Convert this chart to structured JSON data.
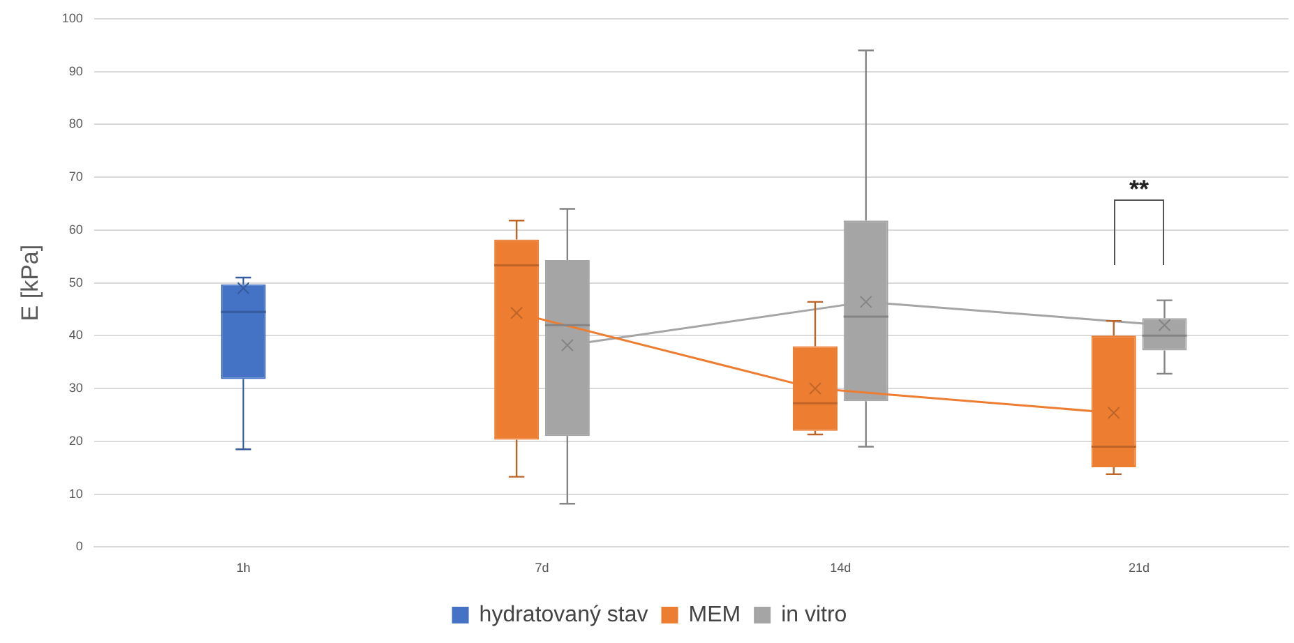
{
  "chart_data": {
    "type": "box",
    "categories": [
      "1h",
      "7d",
      "14d",
      "21d"
    ],
    "ylabel": "E [kPa]",
    "ylim": [
      0,
      100
    ],
    "yticks": [
      0,
      10,
      20,
      30,
      40,
      50,
      60,
      70,
      80,
      90,
      100
    ],
    "grid": "y",
    "legend": "bottom",
    "annotations": [
      "**"
    ],
    "series": [
      {
        "name": "hydratovaný stav",
        "color": "#4472c4",
        "boxes": [
          {
            "low": 18.5,
            "q1": 31.8,
            "median": 44.5,
            "q3": 49.7,
            "high": 51,
            "mean": 49
          },
          null,
          null,
          null
        ]
      },
      {
        "name": "MEM",
        "color": "#ed7d31",
        "boxes": [
          null,
          {
            "low": 13.3,
            "q1": 20.3,
            "median": 53.3,
            "q3": 58.2,
            "high": 61.8,
            "mean": 44.3
          },
          {
            "low": 21.3,
            "q1": 22,
            "median": 27.2,
            "q3": 38,
            "high": 46.4,
            "mean": 30
          },
          {
            "low": 13.8,
            "q1": 15.1,
            "median": 19,
            "q3": 40,
            "high": 42.8,
            "mean": 25.4
          }
        ]
      },
      {
        "name": "in vitro",
        "color": "#a5a5a5",
        "boxes": [
          null,
          {
            "low": 8.2,
            "q1": 21,
            "median": 42,
            "q3": 54.3,
            "high": 64,
            "mean": 38.2
          },
          {
            "low": 19,
            "q1": 27.6,
            "median": 43.6,
            "q3": 61.8,
            "high": 94,
            "mean": 46.4
          },
          {
            "low": 32.8,
            "q1": 37.2,
            "median": 40,
            "q3": 43.3,
            "high": 46.7,
            "mean": 42
          }
        ]
      },
      {
        "type": "line",
        "color": "#ed7d31",
        "values": [
          null,
          44.3,
          30,
          25.4
        ]
      },
      {
        "type": "line",
        "color": "#a5a5a5",
        "values": [
          null,
          38.2,
          46.4,
          42
        ]
      }
    ]
  }
}
